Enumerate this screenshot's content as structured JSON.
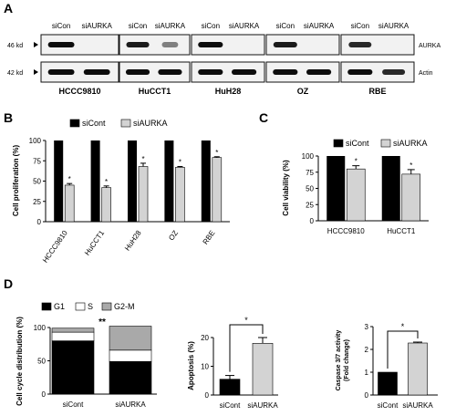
{
  "panel_letters": [
    "A",
    "B",
    "C",
    "D"
  ],
  "blot": {
    "conditions": [
      "siCon",
      "siAURKA"
    ],
    "size_markers": [
      "46 kd",
      "42 kd"
    ],
    "protein_labels": [
      "AURKA",
      "Actin"
    ],
    "cell_lines": [
      "HCCC9810",
      "HuCCT1",
      "HuH28",
      "OZ",
      "RBE"
    ],
    "aurka_band_intensity": [
      [
        1.0,
        0.0
      ],
      [
        0.9,
        0.2
      ],
      [
        1.0,
        0.0
      ],
      [
        0.9,
        0.0
      ],
      [
        0.8,
        0.0
      ]
    ],
    "actin_band_intensity": [
      [
        1.0,
        1.0
      ],
      [
        1.0,
        1.0
      ],
      [
        1.0,
        1.0
      ],
      [
        1.0,
        1.0
      ],
      [
        1.0,
        0.8
      ]
    ]
  },
  "colors": {
    "sicon": "#000000",
    "siaurka": "#d3d3d3"
  },
  "chart_data": [
    {
      "id": "B",
      "type": "bar",
      "ylabel": "Cell proliferation (%)",
      "ylim": [
        0,
        100
      ],
      "yticks": [
        "0",
        "25",
        "50",
        "75",
        "100"
      ],
      "categories": [
        "HCCC9810",
        "HuCCT1",
        "HuH28",
        "OZ",
        "RBE"
      ],
      "series": [
        {
          "name": "siCont",
          "values": [
            100,
            100,
            100,
            100,
            100
          ]
        },
        {
          "name": "siAURKA",
          "values": [
            45,
            42,
            68,
            67,
            79
          ]
        }
      ],
      "errors": [
        [
          0,
          0,
          0,
          0,
          0
        ],
        [
          2,
          2,
          4,
          1,
          1
        ]
      ],
      "significance": [
        "*",
        "*",
        "*",
        "*",
        "*"
      ],
      "legend": "top"
    },
    {
      "id": "C",
      "type": "bar",
      "ylabel": "Cell viability (%)",
      "ylim": [
        0,
        100
      ],
      "yticks": [
        "0",
        "25",
        "50",
        "75",
        "100"
      ],
      "categories": [
        "HCCC9810",
        "HuCCT1"
      ],
      "series": [
        {
          "name": "siCont",
          "values": [
            100,
            100
          ]
        },
        {
          "name": "siAURKA",
          "values": [
            80,
            72
          ]
        }
      ],
      "errors": [
        [
          0,
          0
        ],
        [
          5,
          7
        ]
      ],
      "significance": [
        "*",
        "*"
      ],
      "legend": "top"
    },
    {
      "id": "D1",
      "type": "bar",
      "stacked": true,
      "ylabel": "Cell cycle distribution (%)",
      "ylim": [
        0,
        100
      ],
      "yticks": [
        "0",
        "50",
        "100"
      ],
      "categories": [
        "siCont",
        "siAURKA"
      ],
      "series": [
        {
          "name": "G1",
          "values": [
            80,
            49
          ]
        },
        {
          "name": "S",
          "values": [
            13,
            17
          ]
        },
        {
          "name": "G2-M",
          "values": [
            6,
            36
          ]
        }
      ],
      "significance": "**",
      "legend": "top"
    },
    {
      "id": "D2",
      "type": "bar",
      "ylabel": "Apoptosis (%)",
      "ylim": [
        0,
        20
      ],
      "yticks": [
        "0",
        "10",
        "20"
      ],
      "categories": [
        "siCont",
        "siAURKA"
      ],
      "values": [
        5.5,
        18
      ],
      "errors": [
        1.3,
        2
      ],
      "significance": "*"
    },
    {
      "id": "D3",
      "type": "bar",
      "ylabel": "Caspase 3/7 activity (Fold change)",
      "ylabel_lines": [
        "Caspase 3/7 activity",
        "(Fold change)"
      ],
      "ylim": [
        0,
        3
      ],
      "yticks": [
        "0",
        "1",
        "2",
        "3"
      ],
      "categories": [
        "siCont",
        "siAURKA"
      ],
      "values": [
        1.0,
        2.28
      ],
      "errors": [
        0,
        0.04
      ],
      "significance": "*"
    }
  ]
}
